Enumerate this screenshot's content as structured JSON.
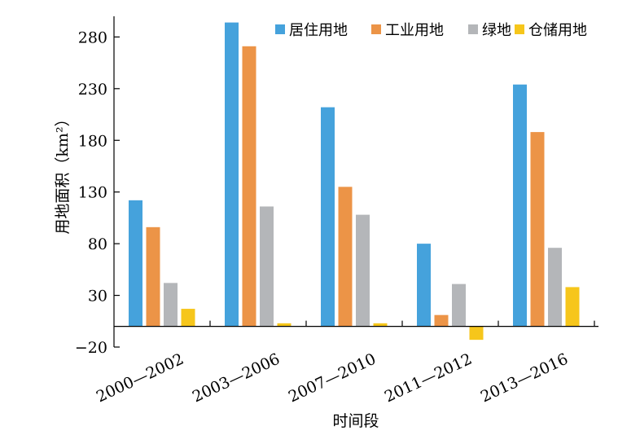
{
  "chart_data": {
    "type": "bar",
    "title": "",
    "xlabel": "时间段",
    "ylabel": "用地面积（km²）",
    "ylim": [
      -20,
      300
    ],
    "yticks": [
      -20,
      30,
      80,
      130,
      180,
      230,
      280
    ],
    "categories": [
      "2000—2002",
      "2003—2006",
      "2007—2010",
      "2011—2012",
      "2013—2016"
    ],
    "series": [
      {
        "name": "居住用地",
        "color": "#45a2dc",
        "values": [
          122,
          294,
          212,
          80,
          234
        ]
      },
      {
        "name": "工业用地",
        "color": "#ec9447",
        "values": [
          96,
          271,
          135,
          11,
          188
        ]
      },
      {
        "name": "绿地",
        "color": "#b4b6b9",
        "values": [
          42,
          116,
          108,
          41,
          76
        ]
      },
      {
        "name": "仓储用地",
        "color": "#f6c61b",
        "values": [
          17,
          3,
          3,
          -13,
          38
        ]
      }
    ],
    "legend_position": "top-right",
    "grid": false
  }
}
